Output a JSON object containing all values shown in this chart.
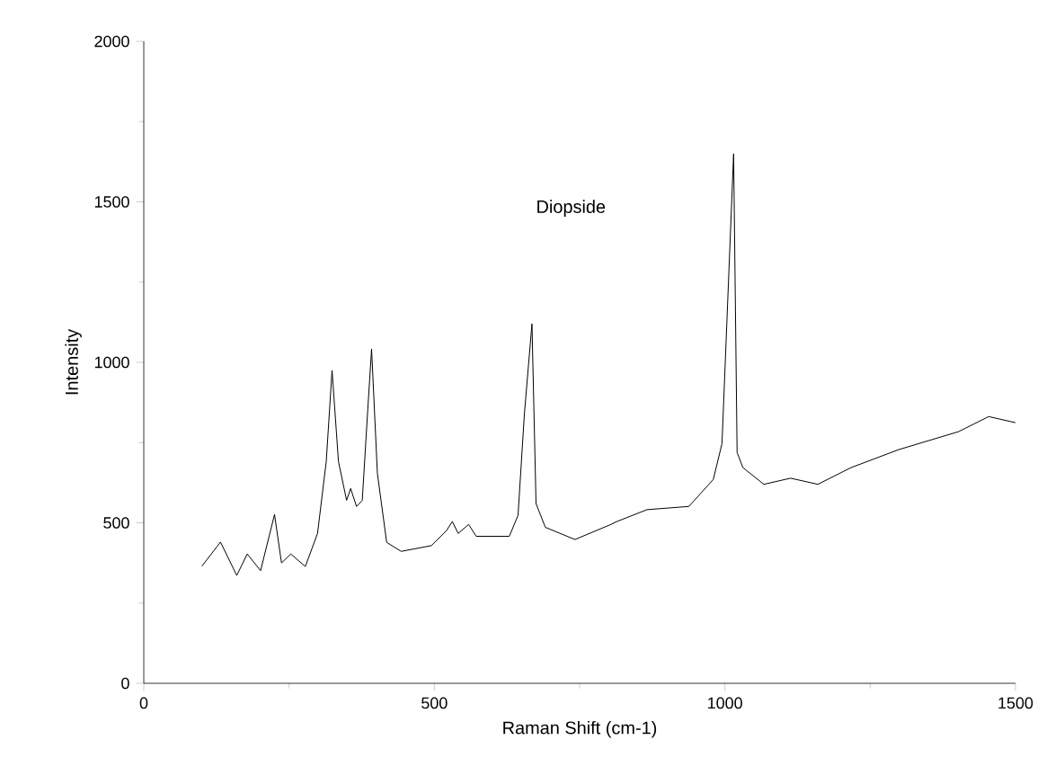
{
  "chart_data": {
    "type": "line",
    "xlabel": "Raman Shift (cm-1)",
    "ylabel": "Intensity",
    "annotations": [
      "Diopside"
    ],
    "x": [
      100,
      132,
      160,
      178,
      201,
      225,
      237,
      253,
      278,
      299,
      314,
      324,
      335,
      349,
      356,
      366,
      376,
      385,
      392,
      402,
      418,
      443,
      495,
      521,
      531,
      541,
      559,
      572,
      629,
      644,
      655,
      668,
      675,
      691,
      742,
      804,
      814,
      866,
      938,
      980,
      995,
      1015,
      1021,
      1031,
      1067,
      1113,
      1160,
      1217,
      1299,
      1402,
      1454,
      1500
    ],
    "series": [
      {
        "color": "#000000",
        "values": [
          365,
          440,
          336,
          403,
          351,
          526,
          375,
          403,
          364,
          467,
          691,
          975,
          691,
          570,
          607,
          551,
          570,
          840,
          1042,
          654,
          439,
          411,
          429,
          476,
          504,
          467,
          495,
          458,
          458,
          523,
          840,
          1120,
          560,
          486,
          448,
          495,
          504,
          541,
          551,
          635,
          747,
          1650,
          719,
          672,
          620,
          639,
          620,
          672,
          728,
          784,
          831,
          812
        ]
      }
    ],
    "xlim": [
      0,
      1500
    ],
    "ylim": [
      0,
      2000
    ],
    "xticks": [
      0,
      500,
      1000,
      1500
    ],
    "yticks": [
      0,
      500,
      1000,
      1500,
      2000
    ],
    "grid": false,
    "marker": "none",
    "line_style": "solid"
  }
}
